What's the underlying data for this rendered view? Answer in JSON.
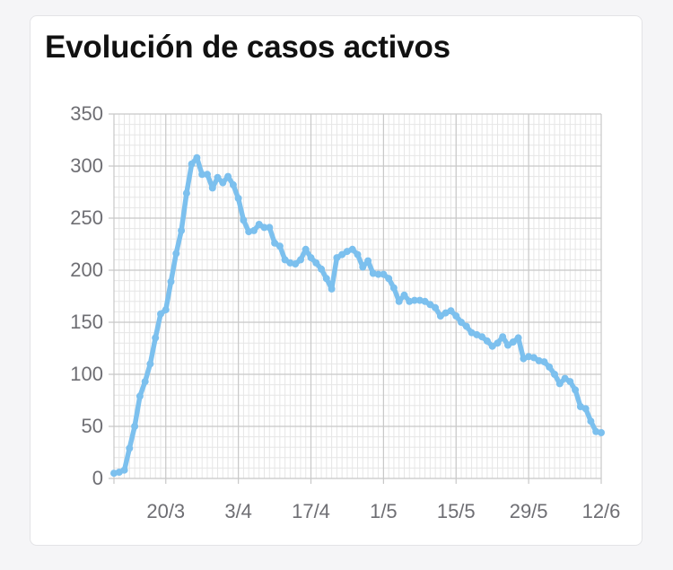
{
  "card": {
    "title": "Evolución de casos activos"
  },
  "colors": {
    "line": "#7cc0ee",
    "grid_major": "#c8c8c8",
    "grid_minor": "#e6e6e6",
    "axis_text": "#6e6e73"
  },
  "chart_data": {
    "type": "line",
    "title": "Evolución de casos activos",
    "xlabel": "",
    "ylabel": "",
    "ylim": [
      0,
      350
    ],
    "yticks": [
      0,
      50,
      100,
      150,
      200,
      250,
      300,
      350
    ],
    "xlim": [
      "2020-03-10",
      "2020-06-12"
    ],
    "xticks": [
      {
        "date": "2020-03-20",
        "label": "20/3"
      },
      {
        "date": "2020-04-03",
        "label": "3/4"
      },
      {
        "date": "2020-04-17",
        "label": "17/4"
      },
      {
        "date": "2020-05-01",
        "label": "1/5"
      },
      {
        "date": "2020-05-15",
        "label": "15/5"
      },
      {
        "date": "2020-05-29",
        "label": "29/5"
      },
      {
        "date": "2020-06-12",
        "label": "12/6"
      }
    ],
    "grid": true,
    "legend": "none",
    "series": [
      {
        "x": [
          "2020-03-10",
          "2020-03-11",
          "2020-03-12",
          "2020-03-13",
          "2020-03-14",
          "2020-03-15",
          "2020-03-16",
          "2020-03-17",
          "2020-03-18",
          "2020-03-19",
          "2020-03-20",
          "2020-03-21",
          "2020-03-22",
          "2020-03-23",
          "2020-03-24",
          "2020-03-25",
          "2020-03-26",
          "2020-03-27",
          "2020-03-28",
          "2020-03-29",
          "2020-03-30",
          "2020-03-31",
          "2020-04-01",
          "2020-04-02",
          "2020-04-03",
          "2020-04-04",
          "2020-04-05",
          "2020-04-06",
          "2020-04-07",
          "2020-04-08",
          "2020-04-09",
          "2020-04-10",
          "2020-04-11",
          "2020-04-12",
          "2020-04-13",
          "2020-04-14",
          "2020-04-15",
          "2020-04-16",
          "2020-04-17",
          "2020-04-18",
          "2020-04-19",
          "2020-04-20",
          "2020-04-21",
          "2020-04-22",
          "2020-04-23",
          "2020-04-24",
          "2020-04-25",
          "2020-04-26",
          "2020-04-27",
          "2020-04-28",
          "2020-04-29",
          "2020-04-30",
          "2020-05-01",
          "2020-05-02",
          "2020-05-03",
          "2020-05-04",
          "2020-05-05",
          "2020-05-06",
          "2020-05-07",
          "2020-05-08",
          "2020-05-09",
          "2020-05-10",
          "2020-05-11",
          "2020-05-12",
          "2020-05-13",
          "2020-05-14",
          "2020-05-15",
          "2020-05-16",
          "2020-05-17",
          "2020-05-18",
          "2020-05-19",
          "2020-05-20",
          "2020-05-21",
          "2020-05-22",
          "2020-05-23",
          "2020-05-24",
          "2020-05-25",
          "2020-05-26",
          "2020-05-27",
          "2020-05-28",
          "2020-05-29",
          "2020-05-30",
          "2020-05-31",
          "2020-06-01",
          "2020-06-02",
          "2020-06-03",
          "2020-06-04",
          "2020-06-05",
          "2020-06-06",
          "2020-06-07",
          "2020-06-08",
          "2020-06-09",
          "2020-06-10",
          "2020-06-11",
          "2020-06-12"
        ],
        "y": [
          5,
          6,
          8,
          29,
          50,
          79,
          93,
          110,
          135,
          158,
          162,
          189,
          216,
          238,
          274,
          302,
          308,
          292,
          292,
          279,
          289,
          284,
          290,
          282,
          269,
          248,
          237,
          238,
          244,
          241,
          241,
          226,
          223,
          210,
          207,
          206,
          210,
          220,
          212,
          207,
          201,
          192,
          182,
          212,
          215,
          218,
          220,
          215,
          203,
          209,
          197,
          196,
          196,
          192,
          183,
          170,
          176,
          170,
          171,
          171,
          170,
          167,
          164,
          156,
          159,
          161,
          156,
          150,
          146,
          140,
          138,
          136,
          132,
          127,
          130,
          136,
          128,
          131,
          135,
          115,
          117,
          116,
          113,
          112,
          107,
          100,
          91,
          96,
          93,
          85,
          69,
          67,
          55,
          45,
          44
        ]
      }
    ]
  }
}
